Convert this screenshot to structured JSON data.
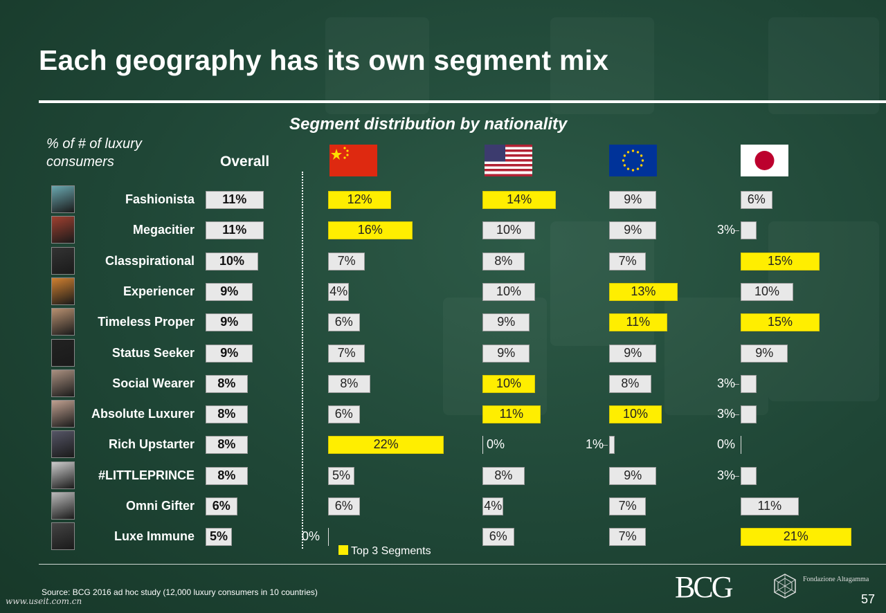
{
  "title": "Each geography has its own segment mix",
  "chart_data": {
    "type": "bar",
    "title": "Segment distribution by nationality",
    "unit_label": "% of # of luxury consumers",
    "categories": [
      "Fashionista",
      "Megacitier",
      "Classpirational",
      "Experiencer",
      "Timeless Proper",
      "Status Seeker",
      "Social Wearer",
      "Absolute Luxurer",
      "Rich Upstarter",
      "#LITTLEPRINCE",
      "Omni Gifter",
      "Luxe Immune"
    ],
    "series": [
      {
        "name": "Overall",
        "values": [
          11,
          11,
          10,
          9,
          9,
          9,
          8,
          8,
          8,
          8,
          6,
          5
        ]
      },
      {
        "values": [
          12,
          16,
          7,
          4,
          6,
          7,
          8,
          6,
          22,
          5,
          6,
          0
        ],
        "top3": [
          true,
          true,
          false,
          false,
          false,
          false,
          false,
          false,
          true,
          false,
          false,
          false
        ]
      },
      {
        "values": [
          14,
          10,
          8,
          10,
          9,
          9,
          10,
          11,
          0,
          8,
          4,
          6
        ],
        "top3": [
          true,
          false,
          false,
          false,
          false,
          false,
          true,
          true,
          false,
          false,
          false,
          false
        ]
      },
      {
        "values": [
          9,
          9,
          7,
          13,
          11,
          9,
          8,
          10,
          1,
          9,
          7,
          7
        ],
        "top3": [
          false,
          false,
          false,
          true,
          true,
          false,
          false,
          true,
          false,
          false,
          false,
          false
        ]
      },
      {
        "values": [
          6,
          3,
          15,
          10,
          15,
          9,
          3,
          3,
          0,
          3,
          11,
          21
        ],
        "top3": [
          false,
          false,
          true,
          false,
          true,
          false,
          false,
          false,
          false,
          false,
          false,
          true
        ]
      }
    ],
    "legend": "Top 3 Segments",
    "highlight_color": "#ffee00",
    "bar_color": "#e8e8e8"
  },
  "labels": {
    "subtitle": "Segment distribution by nationality",
    "unit": "% of # of luxury consumers",
    "overall": "Overall",
    "legend": "Top 3 Segments"
  },
  "flags": [
    "china-flag-icon",
    "usa-flag-icon",
    "eu-flag-icon",
    "japan-flag-icon"
  ],
  "footer": {
    "source": "Source: BCG 2016 ad hoc study (12,000 luxury consumers in 10 countries)",
    "watermark": "www.useit.com.cn",
    "logo": "BCG",
    "partner": "Fondazione Altagamma",
    "page": "57"
  }
}
